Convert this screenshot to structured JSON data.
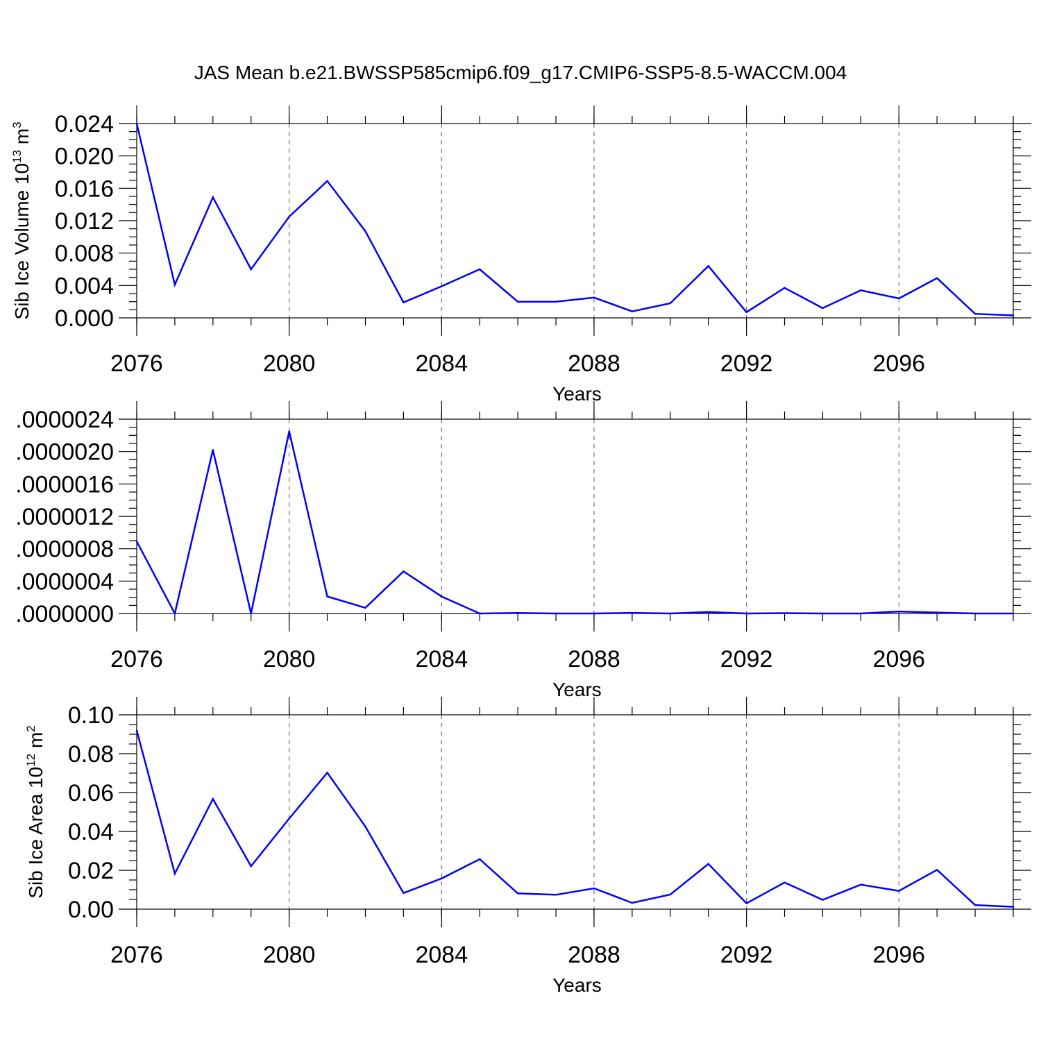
{
  "title": "JAS Mean b.e21.BWSSP585cmip6.f09_g17.CMIP6-SSP5-8.5-WACCM.004",
  "line_color": "#0000ff",
  "chart_data": [
    {
      "type": "line",
      "xlabel": "Years",
      "ylabel": {
        "pre": "Sib Ice Volume 10",
        "sup1": "13",
        "mid": " m",
        "sup2": "3"
      },
      "xlim": [
        2076,
        2099
      ],
      "xticks": [
        2076,
        2080,
        2084,
        2088,
        2092,
        2096
      ],
      "xtick_labels": [
        "2076",
        "2080",
        "2084",
        "2088",
        "2092",
        "2096"
      ],
      "ylim": [
        0,
        0.024
      ],
      "yticks": [
        0,
        0.004,
        0.008,
        0.012,
        0.016,
        0.02,
        0.024
      ],
      "ytick_labels": [
        "0.000",
        "0.004",
        "0.008",
        "0.012",
        "0.016",
        "0.020",
        "0.024"
      ],
      "grid": "dashed vertical at major x ticks",
      "x": [
        2076,
        2077,
        2078,
        2079,
        2080,
        2081,
        2082,
        2083,
        2084,
        2085,
        2086,
        2087,
        2088,
        2089,
        2090,
        2091,
        2092,
        2093,
        2094,
        2095,
        2096,
        2097,
        2098,
        2099
      ],
      "values": [
        0.024,
        0.0041,
        0.0149,
        0.006,
        0.0125,
        0.0169,
        0.0107,
        0.0019,
        0.0039,
        0.006,
        0.002,
        0.002,
        0.0025,
        0.0008,
        0.0018,
        0.0064,
        0.0007,
        0.0037,
        0.0012,
        0.0034,
        0.0024,
        0.0049,
        0.0005,
        0.0003
      ]
    },
    {
      "type": "line",
      "xlabel": "Years",
      "ylabel": null,
      "xlim": [
        2076,
        2099
      ],
      "xticks": [
        2076,
        2080,
        2084,
        2088,
        2092,
        2096
      ],
      "xtick_labels": [
        "2076",
        "2080",
        "2084",
        "2088",
        "2092",
        "2096"
      ],
      "ylim": [
        0,
        2.4e-06
      ],
      "yticks": [
        0,
        4e-07,
        8e-07,
        1.2e-06,
        1.6e-06,
        2e-06,
        2.4e-06
      ],
      "ytick_labels": [
        ".0000000",
        ".0000004",
        ".0000008",
        ".0000012",
        ".0000016",
        ".0000020",
        ".0000024"
      ],
      "grid": "dashed vertical at major x ticks",
      "x": [
        2076,
        2077,
        2078,
        2079,
        2080,
        2081,
        2082,
        2083,
        2084,
        2085,
        2086,
        2087,
        2088,
        2089,
        2090,
        2091,
        2092,
        2093,
        2094,
        2095,
        2096,
        2097,
        2098,
        2099
      ],
      "values": [
        8.9e-07,
        0.0,
        2.02e-06,
        0.0,
        2.25e-06,
        2.1e-07,
        7e-08,
        5.2e-07,
        2.1e-07,
        0.0,
        6e-09,
        0.0,
        0.0,
        8e-09,
        0.0,
        1.8e-08,
        0.0,
        4e-09,
        0.0,
        0.0,
        2.5e-08,
        1.2e-08,
        0.0,
        0.0
      ]
    },
    {
      "type": "line",
      "xlabel": "Years",
      "ylabel": {
        "pre": "Sib Ice Area 10",
        "sup1": "12",
        "mid": " m",
        "sup2": "2"
      },
      "xlim": [
        2076,
        2099
      ],
      "xticks": [
        2076,
        2080,
        2084,
        2088,
        2092,
        2096
      ],
      "xtick_labels": [
        "2076",
        "2080",
        "2084",
        "2088",
        "2092",
        "2096"
      ],
      "ylim": [
        0,
        0.1
      ],
      "yticks": [
        0,
        0.02,
        0.04,
        0.06,
        0.08,
        0.1
      ],
      "ytick_labels": [
        "0.00",
        "0.02",
        "0.04",
        "0.06",
        "0.08",
        "0.10"
      ],
      "grid": "dashed vertical at major x ticks",
      "x": [
        2076,
        2077,
        2078,
        2079,
        2080,
        2081,
        2082,
        2083,
        2084,
        2085,
        2086,
        2087,
        2088,
        2089,
        2090,
        2091,
        2092,
        2093,
        2094,
        2095,
        2096,
        2097,
        2098,
        2099
      ],
      "values": [
        0.092,
        0.0183,
        0.0567,
        0.0221,
        0.0466,
        0.0702,
        0.0425,
        0.0083,
        0.0158,
        0.0257,
        0.0081,
        0.0074,
        0.0107,
        0.0032,
        0.0075,
        0.0233,
        0.003,
        0.0137,
        0.0048,
        0.0126,
        0.0094,
        0.0202,
        0.0021,
        0.0012
      ]
    }
  ]
}
